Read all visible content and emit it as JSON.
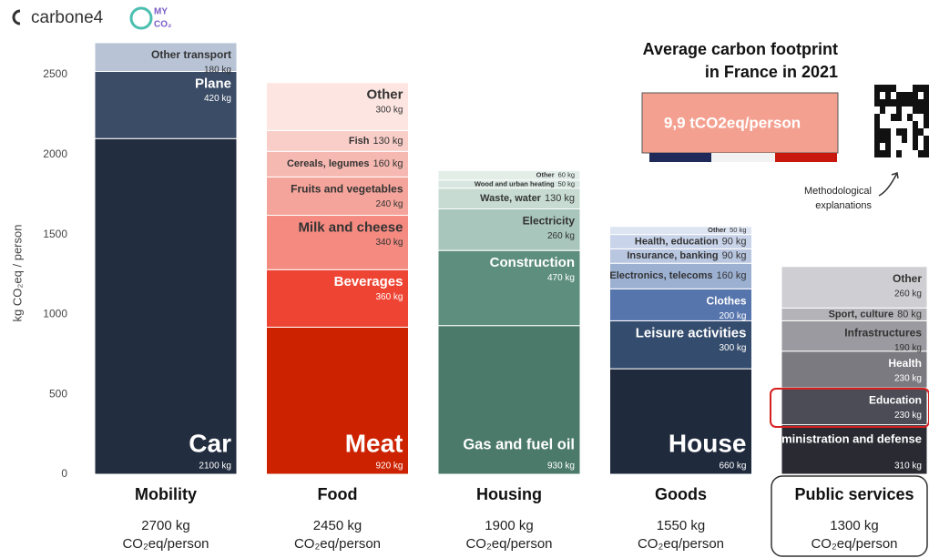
{
  "header": {
    "brand": "carbone4",
    "logo_top": "MY",
    "logo_bottom": "CO₂"
  },
  "callout": {
    "title_lines": [
      "Average carbon footprint",
      "in France in 2021"
    ],
    "footprint": "9,9 tCO2eq/person",
    "methodology": [
      "Methodological",
      "explanations"
    ]
  },
  "chart_data": {
    "type": "stacked_bar",
    "ylabel": "kg CO₂eq / person",
    "ylim": [
      0,
      2700
    ],
    "yticks": [
      0,
      500,
      1000,
      1500,
      2000,
      2500
    ],
    "unit_line": "CO₂eq/person",
    "columns": [
      {
        "name": "Mobility",
        "total_label": "2700 kg",
        "segments": [
          {
            "name": "Car",
            "value": 2100,
            "value_label": "2100 kg",
            "color": "#232d40"
          },
          {
            "name": "Plane",
            "value": 420,
            "value_label": "420 kg",
            "color": "#3b4c66"
          },
          {
            "name": "Other transport",
            "value": 180,
            "value_label": "180 kg",
            "color": "#b8c4d6"
          }
        ]
      },
      {
        "name": "Food",
        "total_label": "2450 kg",
        "segments": [
          {
            "name": "Meat",
            "value": 920,
            "value_label": "920 kg",
            "color": "#cc2200"
          },
          {
            "name": "Beverages",
            "value": 360,
            "value_label": "360 kg",
            "color": "#ee4433"
          },
          {
            "name": "Milk and cheese",
            "value": 340,
            "value_label": "340 kg",
            "color": "#f48a80"
          },
          {
            "name": "Fruits and vegetables",
            "value": 240,
            "value_label": "240 kg",
            "color": "#f4a49a"
          },
          {
            "name": "Cereals, legumes",
            "value": 160,
            "value_label": "160 kg",
            "color": "#f6b9b1"
          },
          {
            "name": "Fish",
            "value": 130,
            "value_label": "130 kg",
            "color": "#f9cec8"
          },
          {
            "name": "Other",
            "value": 300,
            "value_label": "300 kg",
            "color": "#fde6e2"
          }
        ]
      },
      {
        "name": "Housing",
        "total_label": "1900 kg",
        "segments": [
          {
            "name": "Gas and fuel oil",
            "value": 930,
            "value_label": "930 kg",
            "color": "#4b7a6a"
          },
          {
            "name": "Construction",
            "value": 470,
            "value_label": "470 kg",
            "color": "#5e8f7e"
          },
          {
            "name": "Electricity",
            "value": 260,
            "value_label": "260 kg",
            "color": "#a8c6bb"
          },
          {
            "name": "Waste, water",
            "value": 130,
            "value_label": "130 kg",
            "color": "#c7dbd3"
          },
          {
            "name": "Wood and urban heating",
            "value": 50,
            "value_label": "50 kg",
            "color": "#d7e6e0"
          },
          {
            "name": "Other",
            "value": 60,
            "value_label": "60 kg",
            "color": "#e3eee9"
          }
        ]
      },
      {
        "name": "Goods",
        "total_label": "1550 kg",
        "segments": [
          {
            "name": "House",
            "value": 660,
            "value_label": "660 kg",
            "color": "#1f2a3d"
          },
          {
            "name": "Leisure activities",
            "value": 300,
            "value_label": "300 kg",
            "color": "#344c6d"
          },
          {
            "name": "Clothes",
            "value": 200,
            "value_label": "200 kg",
            "color": "#5775ad"
          },
          {
            "name": "Electronics, telecoms",
            "value": 160,
            "value_label": "160 kg",
            "color": "#9cb0d2"
          },
          {
            "name": "Insurance, banking",
            "value": 90,
            "value_label": "90 kg",
            "color": "#b8c6e0"
          },
          {
            "name": "Health, education",
            "value": 90,
            "value_label": "90 kg",
            "color": "#c9d4ea"
          },
          {
            "name": "Other",
            "value": 50,
            "value_label": "50 kg",
            "color": "#dde4f2"
          }
        ]
      },
      {
        "name": "Public services",
        "total_label": "1300 kg",
        "segments": [
          {
            "name": "Administration and defense",
            "value": 310,
            "value_label": "310 kg",
            "color": "#2a2a33"
          },
          {
            "name": "Education",
            "value": 230,
            "value_label": "230 kg",
            "color": "#4c4c57"
          },
          {
            "name": "Health",
            "value": 230,
            "value_label": "230 kg",
            "color": "#7a7a80"
          },
          {
            "name": "Infrastructures",
            "value": 190,
            "value_label": "190 kg",
            "color": "#9a9aa0"
          },
          {
            "name": "Sport, culture",
            "value": 80,
            "value_label": "80 kg",
            "color": "#b4b4b8"
          },
          {
            "name": "Other",
            "value": 260,
            "value_label": "260 kg",
            "color": "#cfcfd3"
          }
        ]
      }
    ]
  }
}
